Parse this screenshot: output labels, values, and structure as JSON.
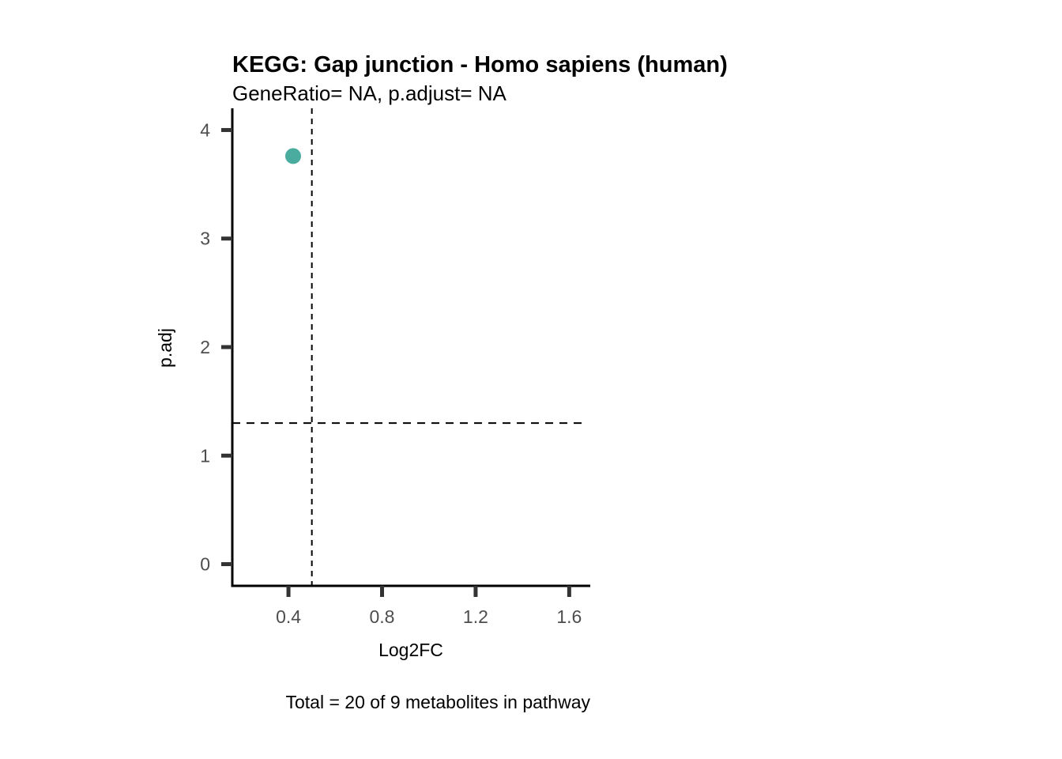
{
  "chart_data": {
    "type": "scatter",
    "title": "KEGG: Gap junction - Homo sapiens (human)",
    "subtitle": "GeneRatio= NA, p.adjust= NA",
    "caption": "Total = 20 of 9 metabolites in pathway",
    "xlabel": "Log2FC",
    "ylabel": "p.adj",
    "xlim": [
      0.16,
      1.69
    ],
    "ylim": [
      -0.2,
      4.2
    ],
    "x_ticks": [
      0.4,
      0.8,
      1.2,
      1.6
    ],
    "x_tick_labels": [
      "0.4",
      "0.8",
      "1.2",
      "1.6"
    ],
    "y_ticks": [
      0,
      1,
      2,
      3,
      4
    ],
    "y_tick_labels": [
      "0",
      "1",
      "2",
      "3",
      "4"
    ],
    "points": [
      {
        "x": 0.42,
        "y": 3.76,
        "color": "#4aac9f"
      }
    ],
    "reference_lines": {
      "vertical_x": 0.5,
      "horizontal_y": 1.3
    },
    "grid": false,
    "legend": "none"
  }
}
